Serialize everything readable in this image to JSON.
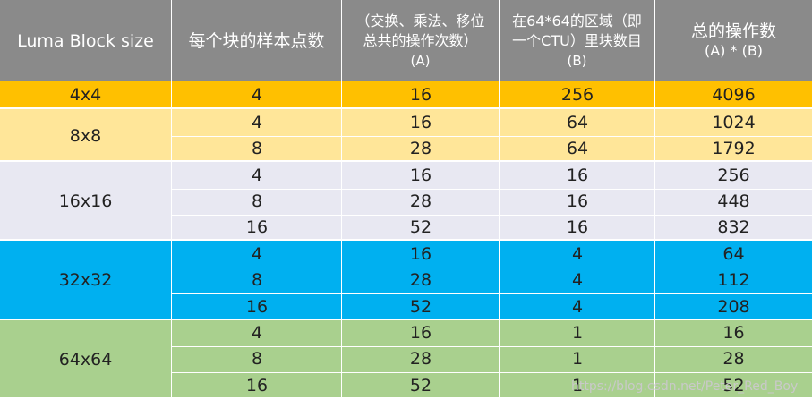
{
  "colors": {
    "header_bg": "#8a8a8a",
    "g4x4": "#ffc000",
    "g8x8": "#ffe699",
    "g16x16": "#e8e8f2",
    "g32x32": "#00b0f0",
    "g64x64": "#a9d08e"
  },
  "header": {
    "col1": "Luma Block size",
    "col2": "每个块的样本点数",
    "col3_line1": "（交换、乘法、移位",
    "col3_line2": "总共的操作次数）",
    "col3_line3": "(A)",
    "col4_line1": "在64*64的区域（即",
    "col4_line2": "一个CTU）里块数目",
    "col4_line3": "(B)",
    "col5_line1": "总的操作数",
    "col5_line2": "(A) * (B)"
  },
  "groups": [
    {
      "size": "4x4",
      "rows": [
        [
          "4",
          "16",
          "256",
          "4096"
        ]
      ]
    },
    {
      "size": "8x8",
      "rows": [
        [
          "4",
          "16",
          "64",
          "1024"
        ],
        [
          "8",
          "28",
          "64",
          "1792"
        ]
      ]
    },
    {
      "size": "16x16",
      "rows": [
        [
          "4",
          "16",
          "16",
          "256"
        ],
        [
          "8",
          "28",
          "16",
          "448"
        ],
        [
          "16",
          "52",
          "16",
          "832"
        ]
      ]
    },
    {
      "size": "32x32",
      "rows": [
        [
          "4",
          "16",
          "4",
          "64"
        ],
        [
          "8",
          "28",
          "4",
          "112"
        ],
        [
          "16",
          "52",
          "4",
          "208"
        ]
      ]
    },
    {
      "size": "64x64",
      "rows": [
        [
          "4",
          "16",
          "1",
          "16"
        ],
        [
          "8",
          "28",
          "1",
          "28"
        ],
        [
          "16",
          "52",
          "1",
          "52"
        ]
      ]
    }
  ],
  "watermark": "https://blog.csdn.net/Peter_Red_Boy"
}
